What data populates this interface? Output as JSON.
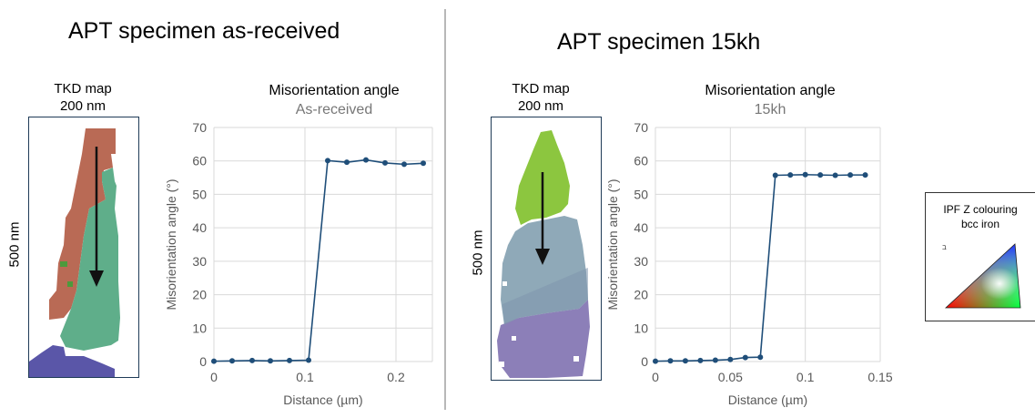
{
  "panels": [
    {
      "title": "APT specimen as-received",
      "map_title_line1": "TKD map",
      "map_title_line2": "200 nm",
      "scale_label": "500 nm",
      "chart_title": "Misorientation angle",
      "chart_subtitle": "As-received"
    },
    {
      "title": "APT specimen 15kh",
      "map_title_line1": "TKD map",
      "map_title_line2": "200 nm",
      "scale_label": "500 nm",
      "chart_title": "Misorientation angle",
      "chart_subtitle": "15kh"
    }
  ],
  "legend": {
    "line1": "IPF Z colouring",
    "line2": "bcc iron",
    "corner_label": "ב"
  },
  "colors": {
    "series": "#1f4e79",
    "grid": "#d9d9d9",
    "axis_text": "#595959",
    "grain_red": "#b96a55",
    "grain_teal": "#5fae8a",
    "grain_purple": "#5a56a8",
    "grain_green": "#8cc63f",
    "grain_blue_gray": "#8fa9b8",
    "grain_violet": "#8c7fb8",
    "divider": "#b8b8b8"
  },
  "chart_data": [
    {
      "type": "line",
      "title": "Misorientation angle",
      "subtitle": "As-received",
      "xlabel": "Distance (µm)",
      "ylabel": "Misorientation angle (°)",
      "xlim": [
        0,
        0.24
      ],
      "ylim": [
        0,
        70
      ],
      "xticks": [
        0,
        0.1,
        0.2
      ],
      "xtick_labels": [
        "0",
        "0.1",
        "0.2"
      ],
      "yticks": [
        0,
        10,
        20,
        30,
        40,
        50,
        60,
        70
      ],
      "grid": true,
      "series": [
        {
          "x": [
            0,
            0.02,
            0.042,
            0.062,
            0.083,
            0.104,
            0.125,
            0.146,
            0.167,
            0.188,
            0.209,
            0.23
          ],
          "y": [
            0.1,
            0.2,
            0.3,
            0.2,
            0.3,
            0.4,
            60.1,
            59.6,
            60.3,
            59.4,
            59.0,
            59.3
          ]
        }
      ]
    },
    {
      "type": "line",
      "title": "Misorientation angle",
      "subtitle": "15kh",
      "xlabel": "Distance (µm)",
      "ylabel": "Misorientation angle (°)",
      "xlim": [
        0,
        0.15
      ],
      "ylim": [
        0,
        70
      ],
      "xticks": [
        0,
        0.05,
        0.1,
        0.15
      ],
      "xtick_labels": [
        "0",
        "0.05",
        "0.1",
        "0.15"
      ],
      "yticks": [
        0,
        10,
        20,
        30,
        40,
        50,
        60,
        70
      ],
      "grid": true,
      "series": [
        {
          "x": [
            0,
            0.01,
            0.02,
            0.03,
            0.04,
            0.05,
            0.06,
            0.07,
            0.08,
            0.09,
            0.1,
            0.11,
            0.12,
            0.13,
            0.14
          ],
          "y": [
            0.1,
            0.2,
            0.2,
            0.3,
            0.4,
            0.6,
            1.2,
            1.3,
            55.7,
            55.8,
            55.9,
            55.8,
            55.7,
            55.8,
            55.8
          ]
        }
      ]
    }
  ]
}
